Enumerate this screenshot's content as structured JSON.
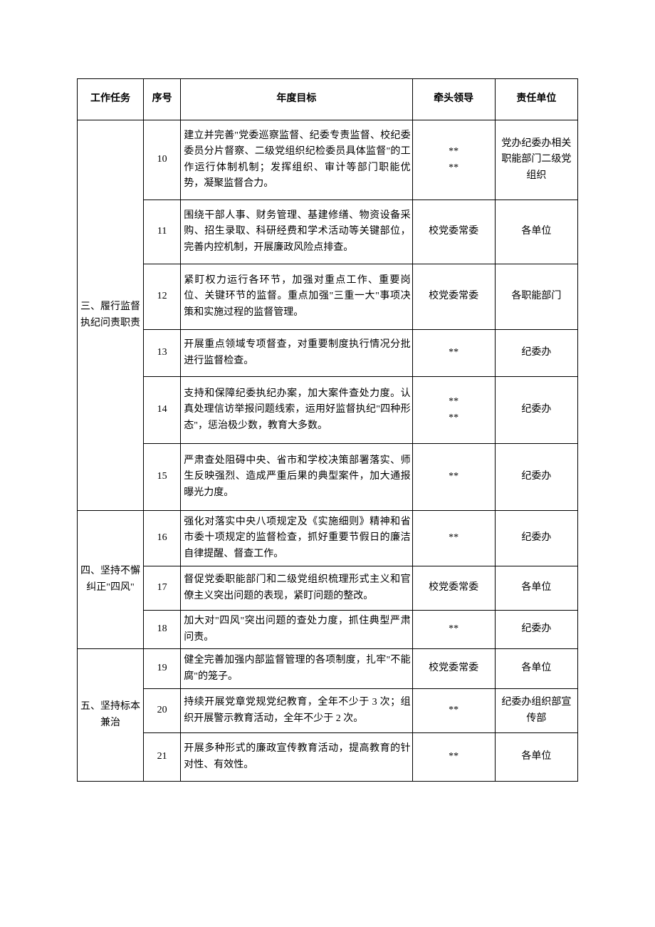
{
  "headers": {
    "task": "工作任务",
    "seq": "序号",
    "goal": "年度目标",
    "leader": "牵头领导",
    "unit": "责任单位"
  },
  "sections": [
    {
      "task": "三、履行监督执纪问责职责",
      "rows": [
        {
          "seq": "10",
          "goal": "建立并完善\"党委巡察监督、纪委专责监督、校纪委委员分片督察、二级党组织纪检委员具体监督\"的工作运行体制机制；发挥组织、审计等部门职能优势，凝聚监督合力。",
          "leader": "**\n**",
          "unit": "党办纪委办相关职能部门二级党组织"
        },
        {
          "seq": "11",
          "goal": "围绕干部人事、财务管理、基建修缮、物资设备采购、招生录取、科研经费和学术活动等关键部位，完善内控机制，开展廉政风险点排查。",
          "leader": "校党委常委",
          "unit": "各单位"
        },
        {
          "seq": "12",
          "goal": "紧盯权力运行各环节，加强对重点工作、重要岗位、关键环节的监督。重点加强\"三重一大\"事项决策和实施过程的监督管理。",
          "leader": "校党委常委",
          "unit": "各职能部门"
        },
        {
          "seq": "13",
          "goal": "开展重点领域专项督查，对重要制度执行情况分批进行监督检查。",
          "leader": "**",
          "unit": "纪委办"
        },
        {
          "seq": "14",
          "goal": "支持和保障纪委执纪办案，加大案件查处力度。认真处理信访举报问题线索，运用好监督执纪\"四种形态\"，惩治极少数，教育大多数。",
          "leader": "**\n**",
          "unit": "纪委办"
        },
        {
          "seq": "15",
          "goal": "严肃查处阻碍中央、省市和学校决策部署落实、师生反映强烈、造成严重后果的典型案件，加大通报曝光力度。",
          "leader": "**",
          "unit": "纪委办"
        }
      ]
    },
    {
      "task": "四、坚持不懈纠正\"四风\"",
      "rows": [
        {
          "seq": "16",
          "goal": "强化对落实中央八项规定及《实施细则》精神和省市委十项规定的监督检查，抓好重要节假日的廉洁自律提醒、督查工作。",
          "leader": "**",
          "unit": "纪委办"
        },
        {
          "seq": "17",
          "goal": "督促党委职能部门和二级党组织梳理形式主义和官僚主义突出问题的表现，紧盯问题的整改。",
          "leader": "校党委常委",
          "unit": "各单位"
        },
        {
          "seq": "18",
          "goal": "加大对\"四风\"突出问题的查处力度，抓住典型严肃问责。",
          "leader": "**",
          "unit": "纪委办"
        }
      ]
    },
    {
      "task": "五、坚持标本兼治",
      "rows": [
        {
          "seq": "19",
          "goal": "健全完善加强内部监督管理的各项制度，扎牢\"不能腐\"的笼子。",
          "leader": "校党委常委",
          "unit": "各单位"
        },
        {
          "seq": "20",
          "goal": "持续开展党章党规党纪教育，全年不少于 3 次；组织开展警示教育活动，全年不少于 2 次。",
          "leader": "**",
          "unit": "纪委办组织部宣传部"
        },
        {
          "seq": "21",
          "goal": "开展多种形式的廉政宣传教育活动，提高教育的针对性、有效性。",
          "leader": "**",
          "unit": "各单位"
        }
      ]
    }
  ],
  "row_heights": {
    "10": 112,
    "11": 90,
    "12": 92,
    "13": 66,
    "14": 94,
    "15": 94,
    "16": 78,
    "17": 62,
    "18": 54,
    "19": 56,
    "20": 62,
    "21": 68
  }
}
